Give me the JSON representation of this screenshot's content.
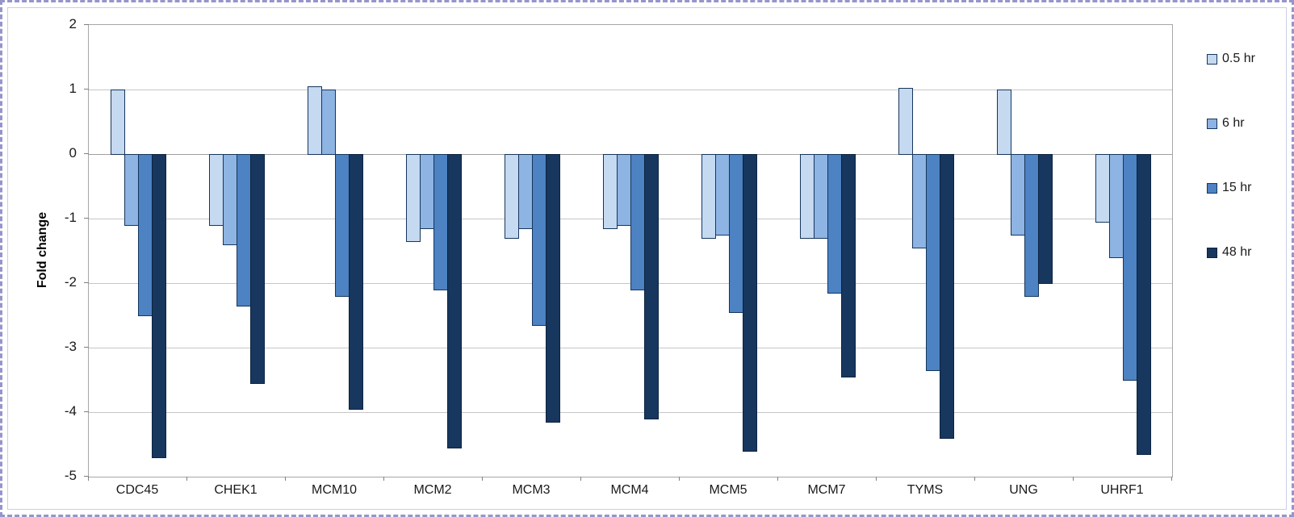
{
  "chart_data": {
    "type": "bar",
    "title": "",
    "xlabel": "",
    "ylabel": "Fold change",
    "ylim": [
      -5,
      2
    ],
    "y_ticks": [
      "2",
      "1",
      "0",
      "-1",
      "-2",
      "-3",
      "-4",
      "-5"
    ],
    "grid": true,
    "legend_position": "right",
    "legend_labels": [
      "0.5 hr",
      "6 hr",
      "15 hr",
      "48 hr"
    ],
    "categories": [
      "CDC45",
      "CHEK1",
      "MCM10",
      "MCM2",
      "MCM3",
      "MCM4",
      "MCM5",
      "MCM7",
      "TYMS",
      "UNG",
      "UHRF1"
    ],
    "series": [
      {
        "name": "0.5 hr",
        "color": "#C5D9F1",
        "border_color": "#16365C",
        "values": [
          1.0,
          -1.1,
          1.05,
          -1.35,
          -1.3,
          -1.15,
          -1.3,
          -1.3,
          1.03,
          1.0,
          -1.05
        ]
      },
      {
        "name": "6 hr",
        "color": "#8DB4E2",
        "border_color": "#16365C",
        "values": [
          -1.1,
          -1.4,
          1.0,
          -1.15,
          -1.15,
          -1.1,
          -1.25,
          -1.3,
          -1.45,
          -1.25,
          -1.6
        ]
      },
      {
        "name": "15 hr",
        "color": "#4D82C3",
        "border_color": "#16365C",
        "values": [
          -2.5,
          -2.35,
          -2.2,
          -2.1,
          -2.65,
          -2.1,
          -2.45,
          -2.15,
          -3.35,
          -2.2,
          -3.5
        ]
      },
      {
        "name": "48 hr",
        "color": "#17375E",
        "border_color": "#0C2340",
        "values": [
          -4.7,
          -3.55,
          -3.95,
          -4.55,
          -4.15,
          -4.1,
          -4.6,
          -3.45,
          -4.4,
          -2.0,
          -4.65
        ]
      }
    ]
  }
}
